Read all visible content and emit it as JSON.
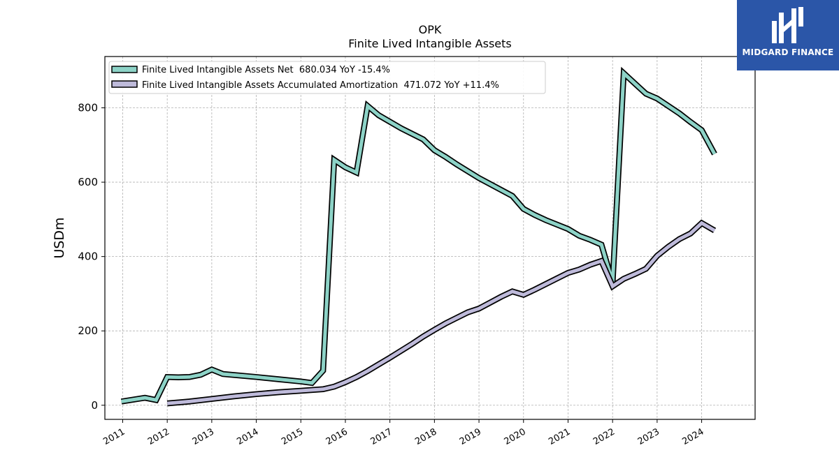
{
  "chart_data": {
    "type": "line",
    "title": "OPK",
    "subtitle": "Finite Lived Intangible Assets",
    "xlabel": "",
    "ylabel": "USDm",
    "xlim": [
      2010.6,
      2025.2
    ],
    "ylim": [
      -38,
      938
    ],
    "yticks": [
      0,
      200,
      400,
      600,
      800
    ],
    "xticks": [
      2011,
      2012,
      2013,
      2014,
      2015,
      2016,
      2017,
      2018,
      2019,
      2020,
      2021,
      2022,
      2023,
      2024
    ],
    "grid": true,
    "legend_position": "top-left",
    "series": [
      {
        "name": "Finite Lived Intangible Assets Net  680.034 YoY -15.4%",
        "color": "#8dd3c7",
        "points": [
          [
            2010.97,
            10
          ],
          [
            2011.5,
            20
          ],
          [
            2011.75,
            14
          ],
          [
            2012.0,
            76
          ],
          [
            2012.25,
            75
          ],
          [
            2012.5,
            76
          ],
          [
            2012.75,
            82
          ],
          [
            2013.0,
            96
          ],
          [
            2013.25,
            84
          ],
          [
            2014.0,
            76
          ],
          [
            2014.5,
            70
          ],
          [
            2015.0,
            64
          ],
          [
            2015.25,
            60
          ],
          [
            2015.5,
            93
          ],
          [
            2015.75,
            660
          ],
          [
            2016.0,
            640
          ],
          [
            2016.25,
            626
          ],
          [
            2016.5,
            805
          ],
          [
            2016.75,
            780
          ],
          [
            2017.25,
            745
          ],
          [
            2017.75,
            715
          ],
          [
            2018.0,
            686
          ],
          [
            2018.25,
            668
          ],
          [
            2018.5,
            648
          ],
          [
            2019.0,
            611
          ],
          [
            2019.75,
            563
          ],
          [
            2020.0,
            528
          ],
          [
            2020.25,
            512
          ],
          [
            2020.5,
            498
          ],
          [
            2021.0,
            474
          ],
          [
            2021.25,
            456
          ],
          [
            2021.5,
            445
          ],
          [
            2021.75,
            432
          ],
          [
            2022.0,
            330
          ],
          [
            2022.25,
            893
          ],
          [
            2022.75,
            838
          ],
          [
            2023.0,
            825
          ],
          [
            2023.5,
            785
          ],
          [
            2023.75,
            762
          ],
          [
            2024.0,
            740
          ],
          [
            2024.29,
            676
          ]
        ]
      },
      {
        "name": "Finite Lived Intangible Assets Accumulated Amortization  471.072 YoY +11.4%",
        "color": "#bebada",
        "points": [
          [
            2012.0,
            5
          ],
          [
            2012.5,
            10
          ],
          [
            2013.0,
            17
          ],
          [
            2013.5,
            24
          ],
          [
            2014.0,
            30
          ],
          [
            2014.5,
            35
          ],
          [
            2015.0,
            39
          ],
          [
            2015.5,
            43
          ],
          [
            2015.75,
            50
          ],
          [
            2016.0,
            62
          ],
          [
            2016.25,
            76
          ],
          [
            2016.5,
            92
          ],
          [
            2016.75,
            110
          ],
          [
            2017.0,
            128
          ],
          [
            2017.5,
            165
          ],
          [
            2017.75,
            185
          ],
          [
            2018.0,
            203
          ],
          [
            2018.25,
            220
          ],
          [
            2018.5,
            235
          ],
          [
            2018.75,
            250
          ],
          [
            2019.0,
            260
          ],
          [
            2019.25,
            276
          ],
          [
            2019.5,
            292
          ],
          [
            2019.75,
            306
          ],
          [
            2020.0,
            297
          ],
          [
            2020.25,
            311
          ],
          [
            2020.5,
            326
          ],
          [
            2020.75,
            341
          ],
          [
            2021.0,
            356
          ],
          [
            2021.25,
            365
          ],
          [
            2021.5,
            378
          ],
          [
            2021.75,
            388
          ],
          [
            2022.0,
            320
          ],
          [
            2022.25,
            340
          ],
          [
            2022.5,
            353
          ],
          [
            2022.75,
            367
          ],
          [
            2023.0,
            402
          ],
          [
            2023.25,
            426
          ],
          [
            2023.5,
            447
          ],
          [
            2023.75,
            462
          ],
          [
            2024.0,
            490
          ],
          [
            2024.29,
            470
          ]
        ]
      }
    ]
  },
  "logo": {
    "text": "MIDGARD FINANCE"
  }
}
